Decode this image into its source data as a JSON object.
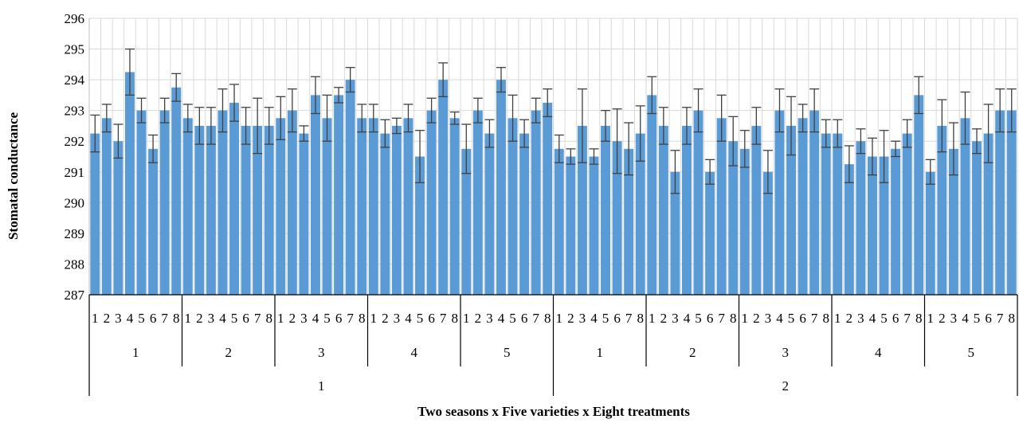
{
  "chart_data": {
    "type": "bar",
    "xlabel": "Two seasons x Five varieties x Eight treatments",
    "ylabel": "Stomatal conductance",
    "ylim": [
      287,
      296
    ],
    "yticks": [
      287,
      288,
      289,
      290,
      291,
      292,
      293,
      294,
      295,
      296
    ],
    "grid": "vertical and horizontal",
    "bar_color": "#5b9bd5",
    "errorbar_color": "#404040",
    "seasons": [
      "1",
      "2"
    ],
    "varieties": [
      "1",
      "2",
      "3",
      "4",
      "5"
    ],
    "treatments": [
      "1",
      "2",
      "3",
      "4",
      "5",
      "6",
      "7",
      "8"
    ],
    "series": [
      {
        "season": "1",
        "groups": [
          {
            "variety": "1",
            "values": [
              292.25,
              292.75,
              292.0,
              294.25,
              293.0,
              291.75,
              293.0,
              293.75
            ],
            "errors": [
              0.6,
              0.45,
              0.55,
              0.75,
              0.4,
              0.45,
              0.4,
              0.45
            ]
          },
          {
            "variety": "2",
            "values": [
              292.75,
              292.5,
              292.5,
              293.0,
              293.25,
              292.5,
              292.5,
              292.5
            ],
            "errors": [
              0.45,
              0.6,
              0.6,
              0.7,
              0.6,
              0.6,
              0.9,
              0.6
            ]
          },
          {
            "variety": "3",
            "values": [
              292.75,
              293.0,
              292.25,
              293.5,
              292.75,
              293.5,
              294.0,
              292.75
            ],
            "errors": [
              0.7,
              0.7,
              0.25,
              0.6,
              0.75,
              0.25,
              0.4,
              0.45
            ]
          },
          {
            "variety": "4",
            "values": [
              292.75,
              292.25,
              292.5,
              292.75,
              291.5,
              293.0,
              294.0,
              292.75
            ],
            "errors": [
              0.45,
              0.45,
              0.25,
              0.45,
              0.85,
              0.4,
              0.55,
              0.2
            ]
          },
          {
            "variety": "5",
            "values": [
              291.75,
              293.0,
              292.25,
              294.0,
              292.75,
              292.25,
              293.0,
              293.25
            ],
            "errors": [
              0.8,
              0.4,
              0.45,
              0.4,
              0.75,
              0.45,
              0.4,
              0.45
            ]
          }
        ]
      },
      {
        "season": "2",
        "groups": [
          {
            "variety": "1",
            "values": [
              291.75,
              291.5,
              292.5,
              291.5,
              292.5,
              292.0,
              291.75,
              292.25
            ],
            "errors": [
              0.45,
              0.25,
              1.2,
              0.25,
              0.5,
              1.05,
              0.85,
              0.9
            ]
          },
          {
            "variety": "2",
            "values": [
              293.5,
              292.5,
              291.0,
              292.5,
              293.0,
              291.0,
              292.75,
              292.0
            ],
            "errors": [
              0.6,
              0.6,
              0.7,
              0.6,
              0.7,
              0.4,
              0.75,
              0.8
            ]
          },
          {
            "variety": "3",
            "values": [
              291.75,
              292.5,
              291.0,
              293.0,
              292.5,
              292.75,
              293.0,
              292.25
            ],
            "errors": [
              0.6,
              0.6,
              0.7,
              0.7,
              0.95,
              0.45,
              0.7,
              0.45
            ]
          },
          {
            "variety": "4",
            "values": [
              292.25,
              291.25,
              292.0,
              291.5,
              291.5,
              291.75,
              292.25,
              293.5
            ],
            "errors": [
              0.45,
              0.6,
              0.4,
              0.6,
              0.85,
              0.25,
              0.45,
              0.6
            ]
          },
          {
            "variety": "5",
            "values": [
              291.0,
              292.5,
              291.75,
              292.75,
              292.0,
              292.25,
              293.0,
              293.0
            ],
            "errors": [
              0.4,
              0.85,
              0.85,
              0.85,
              0.4,
              0.95,
              0.7,
              0.7
            ]
          }
        ]
      }
    ]
  }
}
